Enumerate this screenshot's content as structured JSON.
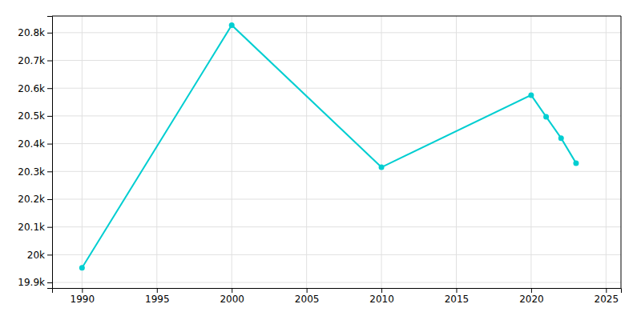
{
  "chart_data": {
    "type": "line",
    "x": [
      1990,
      2000,
      2010,
      2020,
      2021,
      2022,
      2023
    ],
    "values": [
      19953,
      20827,
      20315,
      20575,
      20497,
      20420,
      20330
    ],
    "color": "#00CED1",
    "marker": "circle",
    "line_style": "solid",
    "xlim": [
      1988,
      2026
    ],
    "ylim": [
      19880,
      20860
    ],
    "xticks": [
      1990,
      1995,
      2000,
      2005,
      2010,
      2015,
      2020,
      2025
    ],
    "yticks": [
      {
        "value": 19900,
        "label": "19.9k"
      },
      {
        "value": 20000,
        "label": "20k"
      },
      {
        "value": 20100,
        "label": "20.1k"
      },
      {
        "value": 20200,
        "label": "20.2k"
      },
      {
        "value": 20300,
        "label": "20.3k"
      },
      {
        "value": 20400,
        "label": "20.4k"
      },
      {
        "value": 20500,
        "label": "20.5k"
      },
      {
        "value": 20600,
        "label": "20.6k"
      },
      {
        "value": 20700,
        "label": "20.7k"
      },
      {
        "value": 20800,
        "label": "20.8k"
      }
    ],
    "grid": true
  }
}
